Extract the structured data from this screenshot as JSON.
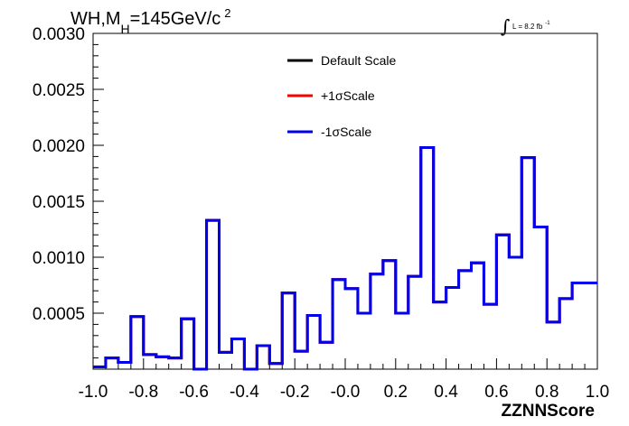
{
  "chart_data": {
    "type": "line",
    "style": "step-histogram",
    "title_parts": {
      "base": "WH,M",
      "sub": "H",
      "mid": "=145GeV/c",
      "sup": "2"
    },
    "luminosity": {
      "main": "L = 8.2 fb",
      "sup": "-1"
    },
    "xlabel": "ZZNNScore",
    "ylabel": "",
    "xlim": [
      -1.0,
      1.0
    ],
    "ylim": [
      0.0,
      0.003
    ],
    "x_tick_labels": [
      "-1.0",
      "-0.8",
      "-0.6",
      "-0.4",
      "-0.2",
      "-0.0",
      "0.2",
      "0.4",
      "0.6",
      "0.8",
      "1.0"
    ],
    "x_tick_values": [
      -1.0,
      -0.8,
      -0.6,
      -0.4,
      -0.2,
      0.0,
      0.2,
      0.4,
      0.6,
      0.8,
      1.0
    ],
    "y_tick_labels": [
      "0.0005",
      "0.0010",
      "0.0015",
      "0.0020",
      "0.0025",
      "0.0030"
    ],
    "y_tick_values": [
      0.0005,
      0.001,
      0.0015,
      0.002,
      0.0025,
      0.003
    ],
    "bin_edges": [
      -1.0,
      -0.95,
      -0.9,
      -0.85,
      -0.8,
      -0.75,
      -0.7,
      -0.65,
      -0.6,
      -0.55,
      -0.5,
      -0.45,
      -0.4,
      -0.35,
      -0.3,
      -0.25,
      -0.2,
      -0.15,
      -0.1,
      -0.05,
      0.0,
      0.05,
      0.1,
      0.15,
      0.2,
      0.25,
      0.3,
      0.35,
      0.4,
      0.45,
      0.5,
      0.55,
      0.6,
      0.65,
      0.7,
      0.75,
      0.8,
      0.85,
      0.9,
      0.95,
      1.0
    ],
    "series": [
      {
        "name": "Default Scale",
        "color": "#000000",
        "values": [
          2e-05,
          0.0001,
          6e-05,
          0.00047,
          0.00013,
          0.00011,
          0.0001,
          0.00045,
          0.0,
          0.00133,
          0.00015,
          0.00027,
          0.0,
          0.00021,
          5e-05,
          0.00068,
          0.00016,
          0.00048,
          0.00024,
          0.0008,
          0.00072,
          0.0005,
          0.00085,
          0.00097,
          0.0005,
          0.00083,
          0.00198,
          0.0006,
          0.00073,
          0.00088,
          0.00095,
          0.00058,
          0.0012,
          0.001,
          0.00189,
          0.00127,
          0.00042,
          0.00063,
          0.00077,
          0.00077
        ]
      },
      {
        "name": "+1σScale",
        "color": "#ff0000",
        "values": [
          2e-05,
          0.0001,
          6e-05,
          0.00047,
          0.00013,
          0.00011,
          0.0001,
          0.00045,
          0.0,
          0.00133,
          0.00015,
          0.00027,
          0.0,
          0.00021,
          5e-05,
          0.00068,
          0.00016,
          0.00048,
          0.00024,
          0.0008,
          0.00072,
          0.0005,
          0.00085,
          0.00097,
          0.0005,
          0.00083,
          0.00198,
          0.0006,
          0.00073,
          0.00088,
          0.00095,
          0.00058,
          0.0012,
          0.001,
          0.00189,
          0.00127,
          0.00042,
          0.00063,
          0.00077,
          0.00077
        ]
      },
      {
        "name": "-1σScale",
        "color": "#0000ee",
        "values": [
          2e-05,
          0.0001,
          6e-05,
          0.00047,
          0.00013,
          0.00011,
          0.0001,
          0.00045,
          0.0,
          0.00133,
          0.00015,
          0.00027,
          0.0,
          0.00021,
          5e-05,
          0.00068,
          0.00016,
          0.00048,
          0.00024,
          0.0008,
          0.00072,
          0.0005,
          0.00085,
          0.00097,
          0.0005,
          0.00083,
          0.00198,
          0.0006,
          0.00073,
          0.00088,
          0.00095,
          0.00058,
          0.0012,
          0.001,
          0.00189,
          0.00127,
          0.00042,
          0.00063,
          0.00077,
          0.00077
        ]
      }
    ],
    "legend_position": "top-center",
    "grid": false
  }
}
